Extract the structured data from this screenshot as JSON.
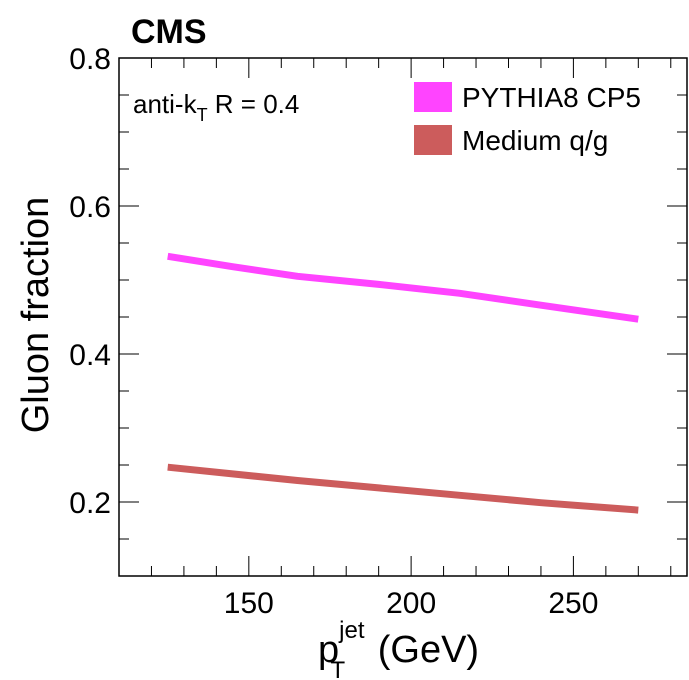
{
  "chart_data": {
    "type": "line",
    "experiment_label": "CMS",
    "annotation": {
      "main": "anti-k",
      "sub": "T",
      "rest": " R = 0.4"
    },
    "xlabel": {
      "main": "p",
      "sub": "T",
      "sup": "jet",
      "rest": " (GeV)"
    },
    "ylabel": "Gluon fraction",
    "xlim": [
      110,
      285
    ],
    "ylim": [
      0.1,
      0.8
    ],
    "xticks": [
      150,
      200,
      250
    ],
    "xtick_labels": [
      "150",
      "200",
      "250"
    ],
    "yticks": [
      0.2,
      0.4,
      0.6,
      0.8
    ],
    "ytick_labels": [
      "0.2",
      "0.4",
      "0.6",
      "0.8"
    ],
    "legend_position": "top-right",
    "series": [
      {
        "name": "PYTHIA8 CP5",
        "color": "#ff44ff",
        "x": [
          125,
          145,
          165,
          190,
          215,
          240,
          270
        ],
        "y": [
          0.532,
          0.518,
          0.505,
          0.494,
          0.482,
          0.466,
          0.447
        ]
      },
      {
        "name": "Medium q/g",
        "color": "#cc5c5c",
        "x": [
          125,
          145,
          165,
          190,
          215,
          240,
          270
        ],
        "y": [
          0.247,
          0.238,
          0.229,
          0.219,
          0.209,
          0.199,
          0.189
        ]
      }
    ]
  }
}
